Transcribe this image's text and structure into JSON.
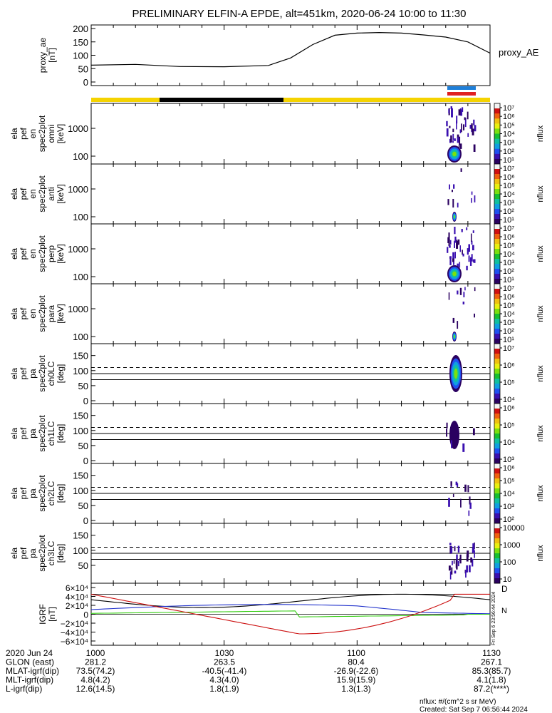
{
  "title": "PRELIMINARY ELFIN-A EPDE, alt=451km, 2020-06-24 10:00 to 11:30",
  "colors": {
    "proxy_line": "#000000",
    "status_yellow": "#f5d300",
    "status_black": "#000000",
    "status_blue": "#1e7fd9",
    "status_red": "#e02020",
    "grf_black": "#000000",
    "grf_blue": "#2233cc",
    "grf_green": "#33cc11",
    "grf_red": "#cc1111"
  },
  "panels": [
    {
      "id": "proxy_ae",
      "ylabel": [
        "proxy_ae",
        "[nT]"
      ],
      "yticks": [
        "200",
        "150",
        "100",
        "50",
        "0"
      ],
      "legend": "proxy_AE"
    },
    {
      "id": "en_omni",
      "ylabel": [
        "ela",
        "pef",
        "en",
        "spec2plot",
        "omni",
        "[keV]"
      ],
      "yticks": [
        "1000",
        "100"
      ],
      "cbar_ticks": [
        "10⁷",
        "10⁶",
        "10⁵",
        "10⁴",
        "10³",
        "10²",
        "10¹"
      ],
      "cbar_label": "nflux"
    },
    {
      "id": "en_anti",
      "ylabel": [
        "ela",
        "pef",
        "en",
        "spec2plot",
        "anti",
        "[keV]"
      ],
      "yticks": [
        "1000",
        "100"
      ],
      "cbar_ticks": [
        "10⁷",
        "10⁶",
        "10⁵",
        "10⁴",
        "10³",
        "10²",
        "10¹"
      ],
      "cbar_label": "nflux"
    },
    {
      "id": "en_perp",
      "ylabel": [
        "ela",
        "pef",
        "en",
        "spec2plot",
        "perp",
        "[keV]"
      ],
      "yticks": [
        "1000",
        "100"
      ],
      "cbar_ticks": [
        "10⁷",
        "10⁶",
        "10⁵",
        "10⁴",
        "10³",
        "10²",
        "10¹"
      ],
      "cbar_label": "nflux"
    },
    {
      "id": "en_para",
      "ylabel": [
        "ela",
        "pef",
        "en",
        "spec2plot",
        "para",
        "[keV]"
      ],
      "yticks": [
        "1000",
        "100"
      ],
      "cbar_ticks": [
        "10⁷",
        "10⁶",
        "10⁵",
        "10⁴",
        "10³",
        "10²",
        "10¹"
      ],
      "cbar_label": "nflux"
    },
    {
      "id": "pa_ch0",
      "ylabel": [
        "ela",
        "pef",
        "pa",
        "spec2plot",
        "ch0LC",
        "[deg]"
      ],
      "yticks": [
        "150",
        "100",
        "50",
        "0"
      ],
      "cbar_ticks": [
        "10⁷",
        "10⁶",
        "10⁵",
        "10⁴"
      ],
      "cbar_label": "nflux"
    },
    {
      "id": "pa_ch1",
      "ylabel": [
        "ela",
        "pef",
        "pa",
        "spec2plot",
        "ch1LC",
        "[deg]"
      ],
      "yticks": [
        "150",
        "100",
        "50",
        "0"
      ],
      "cbar_ticks": [
        "10⁶",
        "10⁵",
        "10⁴",
        "10³"
      ],
      "cbar_label": "nflux"
    },
    {
      "id": "pa_ch2",
      "ylabel": [
        "ela",
        "pef",
        "pa",
        "spec2plot",
        "ch2LC",
        "[deg]"
      ],
      "yticks": [
        "150",
        "100",
        "50",
        "0"
      ],
      "cbar_ticks": [
        "10⁶",
        "10⁵",
        "10⁴",
        "10³",
        "10²"
      ],
      "cbar_label": "nflux"
    },
    {
      "id": "pa_ch3",
      "ylabel": [
        "ela",
        "pef",
        "pa",
        "spec2plot",
        "ch3LC",
        "[deg]"
      ],
      "yticks": [
        "150",
        "100",
        "50"
      ],
      "cbar_ticks": [
        "10000",
        "1000",
        "100",
        "10"
      ],
      "cbar_label": "nflux"
    },
    {
      "id": "igrf",
      "ylabel": [
        "IGRF",
        "[nT]"
      ],
      "yticks": [
        "6×10⁴",
        "4×10⁴",
        "2×10⁴",
        "0",
        "−2×10⁴",
        "−4×10⁴",
        "−6×10⁴"
      ],
      "side_label_d": "D",
      "side_label_n": "N",
      "vertical_note": "Fri Sep 6 23:56:44 2024"
    }
  ],
  "chart_data": {
    "type": "line",
    "x_unit": "UT (hhmm)",
    "xlim": [
      "10:00",
      "11:30"
    ],
    "series": [
      {
        "name": "proxy_AE",
        "x_minutes": [
          0,
          10,
          20,
          30,
          40,
          45,
          50,
          55,
          60,
          65,
          70,
          75,
          80,
          85,
          90
        ],
        "values": [
          63,
          66,
          58,
          57,
          62,
          90,
          140,
          175,
          183,
          185,
          183,
          176,
          168,
          150,
          108
        ]
      }
    ],
    "ylim": [
      0,
      200
    ]
  },
  "orbit": {
    "rows": [
      {
        "label": "2020 Jun 24",
        "values": [
          "1000",
          "1030",
          "1100",
          "1130"
        ]
      },
      {
        "label": "GLON (east)",
        "values": [
          "281.2",
          "263.5",
          "80.4",
          "267.1"
        ]
      },
      {
        "label": "MLAT-igrf(dip)",
        "values": [
          "73.5(74.2)",
          "-40.5(-41.4)",
          "-26.9(-22.6)",
          "85.3(85.7)"
        ]
      },
      {
        "label": "MLT-igrf(dip)",
        "values": [
          "4.8(4.2)",
          "4.3(4.0)",
          "15.9(15.9)",
          "4.1(1.8)"
        ]
      },
      {
        "label": "L-igrf(dip)",
        "values": [
          "12.6(14.5)",
          "1.8(1.9)",
          "1.3(1.3)",
          "87.2(****)"
        ]
      }
    ]
  },
  "footer": {
    "units": "nflux: #/(cm^2 s sr MeV)",
    "created": "Created: Sat Sep  7 06:56:44 2024"
  }
}
